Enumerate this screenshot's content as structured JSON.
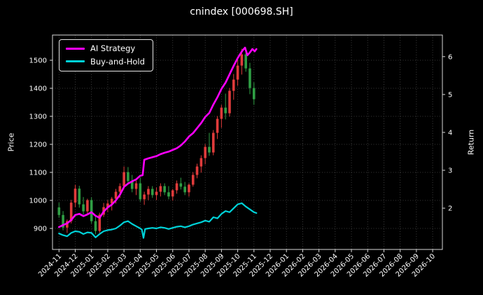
{
  "title": "cnindex [000698.SH]",
  "chart_data": {
    "type": "line+candlestick",
    "title": "cnindex [000698.SH]",
    "ylabel": "Price",
    "ylabel_right": "Return",
    "x_unit": "months since 2024-11",
    "x_tick_labels": [
      "2024-11",
      "2024-12",
      "2025-01",
      "2025-02",
      "2025-03",
      "2025-04",
      "2025-05",
      "2025-06",
      "2025-07",
      "2025-08",
      "2025-09",
      "2025-10",
      "2025-11",
      "2025-12",
      "2026-01",
      "2026-02",
      "2026-03",
      "2026-04",
      "2026-05",
      "2026-06",
      "2026-07",
      "2026-08",
      "2026-09",
      "2026-10"
    ],
    "x_range": [
      -0.4,
      23.6
    ],
    "ylim_left": [
      825,
      1590
    ],
    "ylim_right": [
      0.91,
      6.57
    ],
    "y_ticks_left": [
      900,
      1000,
      1100,
      1200,
      1300,
      1400,
      1500
    ],
    "y_ticks_right": [
      2,
      3,
      4,
      5,
      6
    ],
    "grid": true,
    "legend_position": "upper-left",
    "background_color": "#000000",
    "grid_color": "#4d4d4d",
    "text_color": "#ffffff",
    "spine_color": "#d9d9d9",
    "candles": {
      "up_color": "#e03b3b",
      "down_color": "#2f9e44",
      "convention": "red = up, green = down",
      "ohlc": [
        [
          0.0,
          975,
          992,
          938,
          948
        ],
        [
          0.25,
          948,
          962,
          893,
          903
        ],
        [
          0.5,
          903,
          932,
          884,
          926
        ],
        [
          0.75,
          926,
          1002,
          918,
          992
        ],
        [
          1.0,
          992,
          1056,
          976,
          1042
        ],
        [
          1.25,
          1042,
          1052,
          974,
          986
        ],
        [
          1.5,
          986,
          1012,
          949,
          961
        ],
        [
          1.75,
          961,
          1006,
          953,
          1001
        ],
        [
          2.0,
          1001,
          1011,
          917,
          926
        ],
        [
          2.25,
          926,
          941,
          879,
          891
        ],
        [
          2.5,
          891,
          956,
          884,
          949
        ],
        [
          2.75,
          949,
          991,
          941,
          976
        ],
        [
          3.0,
          976,
          1001,
          958,
          989
        ],
        [
          3.25,
          989,
          1012,
          964,
          1006
        ],
        [
          3.5,
          1006,
          1041,
          989,
          1031
        ],
        [
          3.75,
          1031,
          1061,
          1009,
          1051
        ],
        [
          4.0,
          1051,
          1121,
          1041,
          1101
        ],
        [
          4.25,
          1101,
          1119,
          1059,
          1069
        ],
        [
          4.5,
          1069,
          1091,
          1029,
          1041
        ],
        [
          4.75,
          1041,
          1071,
          1019,
          1061
        ],
        [
          5.0,
          1061,
          1081,
          996,
          1004
        ],
        [
          5.25,
          1004,
          1031,
          984,
          1021
        ],
        [
          5.5,
          1021,
          1051,
          1001,
          1041
        ],
        [
          5.75,
          1041,
          1051,
          1009,
          1019
        ],
        [
          6.0,
          1019,
          1046,
          1001,
          1031
        ],
        [
          6.25,
          1031,
          1061,
          1014,
          1051
        ],
        [
          6.5,
          1051,
          1061,
          1019,
          1029
        ],
        [
          6.75,
          1029,
          1051,
          1004,
          1014
        ],
        [
          7.0,
          1014,
          1041,
          999,
          1036
        ],
        [
          7.25,
          1036,
          1071,
          1024,
          1061
        ],
        [
          7.5,
          1061,
          1081,
          1039,
          1049
        ],
        [
          7.75,
          1049,
          1066,
          1019,
          1029
        ],
        [
          8.0,
          1029,
          1061,
          1014,
          1056
        ],
        [
          8.25,
          1056,
          1101,
          1049,
          1091
        ],
        [
          8.5,
          1091,
          1131,
          1079,
          1121
        ],
        [
          8.75,
          1121,
          1161,
          1099,
          1151
        ],
        [
          9.0,
          1151,
          1201,
          1129,
          1191
        ],
        [
          9.25,
          1191,
          1241,
          1159,
          1171
        ],
        [
          9.5,
          1171,
          1251,
          1161,
          1241
        ],
        [
          9.75,
          1241,
          1301,
          1219,
          1291
        ],
        [
          10.0,
          1291,
          1341,
          1259,
          1331
        ],
        [
          10.25,
          1331,
          1381,
          1289,
          1311
        ],
        [
          10.5,
          1311,
          1401,
          1299,
          1391
        ],
        [
          10.75,
          1391,
          1451,
          1359,
          1431
        ],
        [
          11.0,
          1431,
          1501,
          1409,
          1481
        ],
        [
          11.25,
          1481,
          1541,
          1449,
          1521
        ],
        [
          11.5,
          1521,
          1546,
          1459,
          1471
        ],
        [
          11.75,
          1471,
          1491,
          1379,
          1401
        ],
        [
          12.0,
          1401,
          1421,
          1341,
          1361
        ]
      ]
    },
    "series": [
      {
        "name": "AI Strategy",
        "color": "#ff00ff",
        "axis": "left",
        "points": [
          [
            0,
            905
          ],
          [
            0.25,
            912
          ],
          [
            0.5,
            918
          ],
          [
            0.75,
            930
          ],
          [
            1,
            948
          ],
          [
            1.25,
            952
          ],
          [
            1.5,
            944
          ],
          [
            1.75,
            950
          ],
          [
            2,
            958
          ],
          [
            2.25,
            945
          ],
          [
            2.5,
            938
          ],
          [
            2.75,
            960
          ],
          [
            3,
            975
          ],
          [
            3.25,
            985
          ],
          [
            3.5,
            1000
          ],
          [
            3.75,
            1020
          ],
          [
            4,
            1048
          ],
          [
            4.25,
            1060
          ],
          [
            4.5,
            1068
          ],
          [
            4.75,
            1075
          ],
          [
            5,
            1088
          ],
          [
            5.15,
            1090
          ],
          [
            5.25,
            1145
          ],
          [
            5.5,
            1150
          ],
          [
            5.75,
            1154
          ],
          [
            6,
            1158
          ],
          [
            6.25,
            1165
          ],
          [
            6.5,
            1170
          ],
          [
            6.75,
            1174
          ],
          [
            7,
            1180
          ],
          [
            7.25,
            1186
          ],
          [
            7.5,
            1196
          ],
          [
            7.75,
            1210
          ],
          [
            8,
            1228
          ],
          [
            8.25,
            1240
          ],
          [
            8.5,
            1258
          ],
          [
            8.75,
            1276
          ],
          [
            9,
            1298
          ],
          [
            9.25,
            1312
          ],
          [
            9.5,
            1342
          ],
          [
            9.75,
            1368
          ],
          [
            10,
            1398
          ],
          [
            10.25,
            1420
          ],
          [
            10.5,
            1450
          ],
          [
            10.75,
            1480
          ],
          [
            11,
            1508
          ],
          [
            11.15,
            1522
          ],
          [
            11.3,
            1535
          ],
          [
            11.45,
            1545
          ],
          [
            11.6,
            1518
          ],
          [
            11.75,
            1528
          ],
          [
            11.9,
            1540
          ],
          [
            12.05,
            1532
          ],
          [
            12.15,
            1540
          ]
        ]
      },
      {
        "name": "Buy-and-Hold",
        "color": "#00d2d8",
        "axis": "left",
        "points": [
          [
            0,
            882
          ],
          [
            0.25,
            876
          ],
          [
            0.5,
            872
          ],
          [
            0.75,
            884
          ],
          [
            1,
            890
          ],
          [
            1.25,
            888
          ],
          [
            1.5,
            880
          ],
          [
            1.75,
            886
          ],
          [
            2,
            884
          ],
          [
            2.25,
            868
          ],
          [
            2.5,
            880
          ],
          [
            2.75,
            890
          ],
          [
            3,
            894
          ],
          [
            3.25,
            896
          ],
          [
            3.5,
            900
          ],
          [
            3.75,
            910
          ],
          [
            4,
            922
          ],
          [
            4.25,
            926
          ],
          [
            4.5,
            916
          ],
          [
            4.75,
            908
          ],
          [
            5,
            900
          ],
          [
            5.1,
            896
          ],
          [
            5.2,
            866
          ],
          [
            5.3,
            898
          ],
          [
            5.5,
            900
          ],
          [
            5.75,
            902
          ],
          [
            6,
            900
          ],
          [
            6.25,
            904
          ],
          [
            6.5,
            902
          ],
          [
            6.75,
            898
          ],
          [
            7,
            902
          ],
          [
            7.25,
            906
          ],
          [
            7.5,
            908
          ],
          [
            7.75,
            904
          ],
          [
            8,
            908
          ],
          [
            8.25,
            914
          ],
          [
            8.5,
            918
          ],
          [
            8.75,
            922
          ],
          [
            9,
            928
          ],
          [
            9.25,
            924
          ],
          [
            9.5,
            940
          ],
          [
            9.75,
            936
          ],
          [
            10,
            952
          ],
          [
            10.25,
            962
          ],
          [
            10.5,
            958
          ],
          [
            10.75,
            972
          ],
          [
            11,
            986
          ],
          [
            11.25,
            990
          ],
          [
            11.5,
            978
          ],
          [
            11.75,
            968
          ],
          [
            12,
            958
          ],
          [
            12.15,
            955
          ]
        ]
      }
    ]
  }
}
